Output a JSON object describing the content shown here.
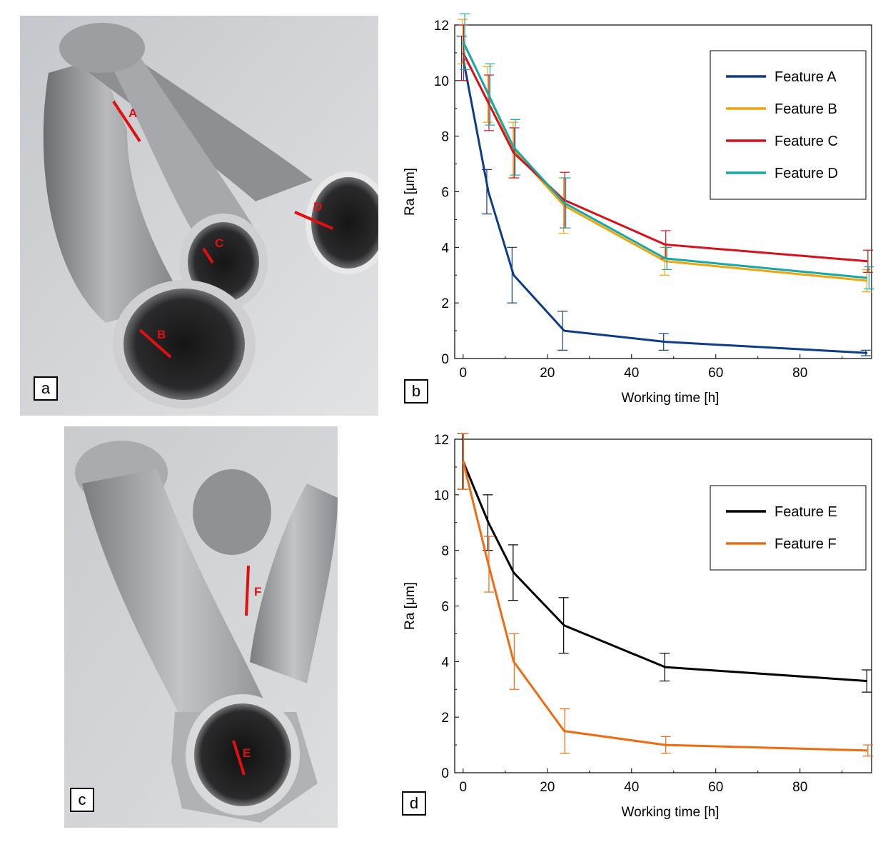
{
  "panels": {
    "a": "a",
    "b": "b",
    "c": "c",
    "d": "d"
  },
  "photo_annotations": {
    "a": [
      "A",
      "B",
      "C",
      "D"
    ],
    "c": [
      "E",
      "F"
    ]
  },
  "colors": {
    "feature_a": "#0d3d8a",
    "feature_b": "#f0a50a",
    "feature_c": "#d8101a",
    "feature_d": "#16a8a8",
    "feature_e": "#000000",
    "feature_f": "#f06a10",
    "annotation": "#e01010"
  },
  "chart_data": [
    {
      "type": "line",
      "panel": "b",
      "xlabel": "Working time [h]",
      "ylabel": "Ra [μm]",
      "xlim": [
        -2,
        97
      ],
      "ylim": [
        0,
        12
      ],
      "xticks": [
        0,
        20,
        40,
        60,
        80
      ],
      "yticks": [
        0,
        2,
        4,
        6,
        8,
        10,
        12
      ],
      "legend_position": "top-right",
      "grid": false,
      "series": [
        {
          "name": "Feature A",
          "color": "#0d3d8a",
          "x": [
            0,
            6,
            12,
            24,
            48,
            96
          ],
          "y": [
            10.8,
            6.0,
            3.0,
            1.0,
            0.6,
            0.2
          ],
          "err": [
            0.8,
            0.8,
            1.0,
            0.7,
            0.3,
            0.1
          ]
        },
        {
          "name": "Feature B",
          "color": "#f0a50a",
          "x": [
            0,
            6,
            12,
            24,
            48,
            96
          ],
          "y": [
            11.4,
            9.5,
            7.5,
            5.5,
            3.5,
            2.8
          ],
          "err": [
            0.8,
            1.0,
            1.0,
            1.0,
            0.5,
            0.4
          ]
        },
        {
          "name": "Feature C",
          "color": "#d8101a",
          "x": [
            0,
            6,
            12,
            24,
            48,
            96
          ],
          "y": [
            11.0,
            9.2,
            7.4,
            5.7,
            4.1,
            3.5
          ],
          "err": [
            1.0,
            1.0,
            0.9,
            1.0,
            0.5,
            0.4
          ]
        },
        {
          "name": "Feature D",
          "color": "#16a8a8",
          "x": [
            0,
            6,
            12,
            24,
            48,
            96
          ],
          "y": [
            11.4,
            9.5,
            7.6,
            5.6,
            3.6,
            2.9
          ],
          "err": [
            1.0,
            1.1,
            1.0,
            0.9,
            0.4,
            0.4
          ]
        }
      ]
    },
    {
      "type": "line",
      "panel": "d",
      "xlabel": "Working time [h]",
      "ylabel": "Ra [μm]",
      "xlim": [
        -2,
        97
      ],
      "ylim": [
        0,
        12
      ],
      "xticks": [
        0,
        20,
        40,
        60,
        80
      ],
      "yticks": [
        0,
        2,
        4,
        6,
        8,
        10,
        12
      ],
      "legend_position": "top-right",
      "grid": false,
      "series": [
        {
          "name": "Feature E",
          "color": "#000000",
          "x": [
            0,
            6,
            12,
            24,
            48,
            96
          ],
          "y": [
            11.2,
            9.0,
            7.2,
            5.3,
            3.8,
            3.3
          ],
          "err": [
            1.0,
            1.0,
            1.0,
            1.0,
            0.5,
            0.4
          ]
        },
        {
          "name": "Feature F",
          "color": "#f06a10",
          "x": [
            0,
            6,
            12,
            24,
            48,
            96
          ],
          "y": [
            11.2,
            7.5,
            4.0,
            1.5,
            1.0,
            0.8
          ],
          "err": [
            1.0,
            1.0,
            1.0,
            0.8,
            0.3,
            0.2
          ]
        }
      ]
    }
  ]
}
